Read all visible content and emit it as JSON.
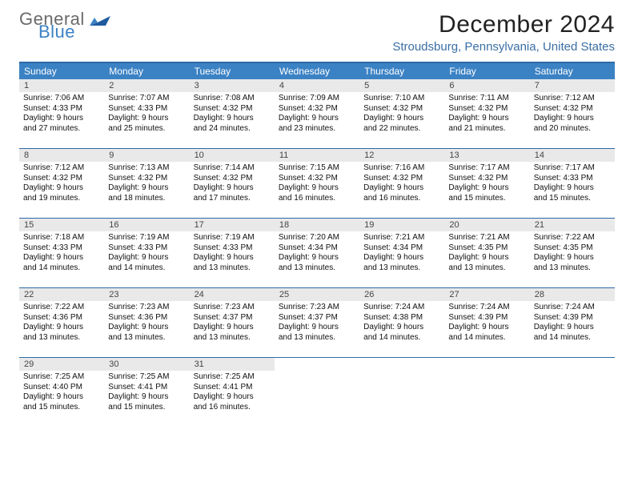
{
  "brand": {
    "text1": "General",
    "text2": "Blue"
  },
  "title": "December 2024",
  "location": "Stroudsburg, Pennsylvania, United States",
  "colors": {
    "accent": "#3b82c4",
    "rule": "#2e6aa8",
    "daybar": "#e9e9e9"
  },
  "days_of_week": [
    "Sunday",
    "Monday",
    "Tuesday",
    "Wednesday",
    "Thursday",
    "Friday",
    "Saturday"
  ],
  "weeks": [
    [
      {
        "n": "1",
        "sunrise": "Sunrise: 7:06 AM",
        "sunset": "Sunset: 4:33 PM",
        "d1": "Daylight: 9 hours",
        "d2": "and 27 minutes."
      },
      {
        "n": "2",
        "sunrise": "Sunrise: 7:07 AM",
        "sunset": "Sunset: 4:33 PM",
        "d1": "Daylight: 9 hours",
        "d2": "and 25 minutes."
      },
      {
        "n": "3",
        "sunrise": "Sunrise: 7:08 AM",
        "sunset": "Sunset: 4:32 PM",
        "d1": "Daylight: 9 hours",
        "d2": "and 24 minutes."
      },
      {
        "n": "4",
        "sunrise": "Sunrise: 7:09 AM",
        "sunset": "Sunset: 4:32 PM",
        "d1": "Daylight: 9 hours",
        "d2": "and 23 minutes."
      },
      {
        "n": "5",
        "sunrise": "Sunrise: 7:10 AM",
        "sunset": "Sunset: 4:32 PM",
        "d1": "Daylight: 9 hours",
        "d2": "and 22 minutes."
      },
      {
        "n": "6",
        "sunrise": "Sunrise: 7:11 AM",
        "sunset": "Sunset: 4:32 PM",
        "d1": "Daylight: 9 hours",
        "d2": "and 21 minutes."
      },
      {
        "n": "7",
        "sunrise": "Sunrise: 7:12 AM",
        "sunset": "Sunset: 4:32 PM",
        "d1": "Daylight: 9 hours",
        "d2": "and 20 minutes."
      }
    ],
    [
      {
        "n": "8",
        "sunrise": "Sunrise: 7:12 AM",
        "sunset": "Sunset: 4:32 PM",
        "d1": "Daylight: 9 hours",
        "d2": "and 19 minutes."
      },
      {
        "n": "9",
        "sunrise": "Sunrise: 7:13 AM",
        "sunset": "Sunset: 4:32 PM",
        "d1": "Daylight: 9 hours",
        "d2": "and 18 minutes."
      },
      {
        "n": "10",
        "sunrise": "Sunrise: 7:14 AM",
        "sunset": "Sunset: 4:32 PM",
        "d1": "Daylight: 9 hours",
        "d2": "and 17 minutes."
      },
      {
        "n": "11",
        "sunrise": "Sunrise: 7:15 AM",
        "sunset": "Sunset: 4:32 PM",
        "d1": "Daylight: 9 hours",
        "d2": "and 16 minutes."
      },
      {
        "n": "12",
        "sunrise": "Sunrise: 7:16 AM",
        "sunset": "Sunset: 4:32 PM",
        "d1": "Daylight: 9 hours",
        "d2": "and 16 minutes."
      },
      {
        "n": "13",
        "sunrise": "Sunrise: 7:17 AM",
        "sunset": "Sunset: 4:32 PM",
        "d1": "Daylight: 9 hours",
        "d2": "and 15 minutes."
      },
      {
        "n": "14",
        "sunrise": "Sunrise: 7:17 AM",
        "sunset": "Sunset: 4:33 PM",
        "d1": "Daylight: 9 hours",
        "d2": "and 15 minutes."
      }
    ],
    [
      {
        "n": "15",
        "sunrise": "Sunrise: 7:18 AM",
        "sunset": "Sunset: 4:33 PM",
        "d1": "Daylight: 9 hours",
        "d2": "and 14 minutes."
      },
      {
        "n": "16",
        "sunrise": "Sunrise: 7:19 AM",
        "sunset": "Sunset: 4:33 PM",
        "d1": "Daylight: 9 hours",
        "d2": "and 14 minutes."
      },
      {
        "n": "17",
        "sunrise": "Sunrise: 7:19 AM",
        "sunset": "Sunset: 4:33 PM",
        "d1": "Daylight: 9 hours",
        "d2": "and 13 minutes."
      },
      {
        "n": "18",
        "sunrise": "Sunrise: 7:20 AM",
        "sunset": "Sunset: 4:34 PM",
        "d1": "Daylight: 9 hours",
        "d2": "and 13 minutes."
      },
      {
        "n": "19",
        "sunrise": "Sunrise: 7:21 AM",
        "sunset": "Sunset: 4:34 PM",
        "d1": "Daylight: 9 hours",
        "d2": "and 13 minutes."
      },
      {
        "n": "20",
        "sunrise": "Sunrise: 7:21 AM",
        "sunset": "Sunset: 4:35 PM",
        "d1": "Daylight: 9 hours",
        "d2": "and 13 minutes."
      },
      {
        "n": "21",
        "sunrise": "Sunrise: 7:22 AM",
        "sunset": "Sunset: 4:35 PM",
        "d1": "Daylight: 9 hours",
        "d2": "and 13 minutes."
      }
    ],
    [
      {
        "n": "22",
        "sunrise": "Sunrise: 7:22 AM",
        "sunset": "Sunset: 4:36 PM",
        "d1": "Daylight: 9 hours",
        "d2": "and 13 minutes."
      },
      {
        "n": "23",
        "sunrise": "Sunrise: 7:23 AM",
        "sunset": "Sunset: 4:36 PM",
        "d1": "Daylight: 9 hours",
        "d2": "and 13 minutes."
      },
      {
        "n": "24",
        "sunrise": "Sunrise: 7:23 AM",
        "sunset": "Sunset: 4:37 PM",
        "d1": "Daylight: 9 hours",
        "d2": "and 13 minutes."
      },
      {
        "n": "25",
        "sunrise": "Sunrise: 7:23 AM",
        "sunset": "Sunset: 4:37 PM",
        "d1": "Daylight: 9 hours",
        "d2": "and 13 minutes."
      },
      {
        "n": "26",
        "sunrise": "Sunrise: 7:24 AM",
        "sunset": "Sunset: 4:38 PM",
        "d1": "Daylight: 9 hours",
        "d2": "and 14 minutes."
      },
      {
        "n": "27",
        "sunrise": "Sunrise: 7:24 AM",
        "sunset": "Sunset: 4:39 PM",
        "d1": "Daylight: 9 hours",
        "d2": "and 14 minutes."
      },
      {
        "n": "28",
        "sunrise": "Sunrise: 7:24 AM",
        "sunset": "Sunset: 4:39 PM",
        "d1": "Daylight: 9 hours",
        "d2": "and 14 minutes."
      }
    ],
    [
      {
        "n": "29",
        "sunrise": "Sunrise: 7:25 AM",
        "sunset": "Sunset: 4:40 PM",
        "d1": "Daylight: 9 hours",
        "d2": "and 15 minutes."
      },
      {
        "n": "30",
        "sunrise": "Sunrise: 7:25 AM",
        "sunset": "Sunset: 4:41 PM",
        "d1": "Daylight: 9 hours",
        "d2": "and 15 minutes."
      },
      {
        "n": "31",
        "sunrise": "Sunrise: 7:25 AM",
        "sunset": "Sunset: 4:41 PM",
        "d1": "Daylight: 9 hours",
        "d2": "and 16 minutes."
      },
      null,
      null,
      null,
      null
    ]
  ]
}
